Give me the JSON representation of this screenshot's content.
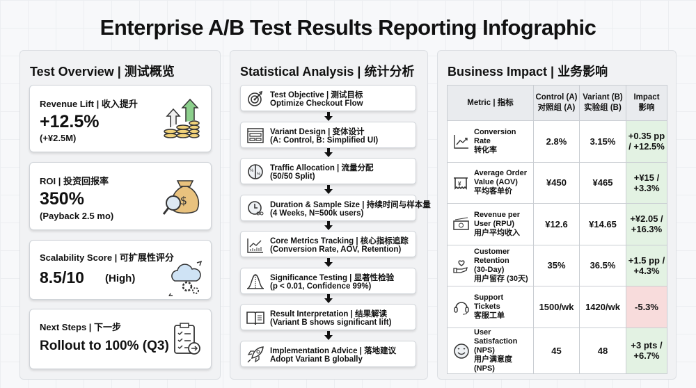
{
  "title": "Enterprise A/B Test Results Reporting Infographic",
  "overview": {
    "title": "Test Overview | 测试概览",
    "cards": [
      {
        "label": "Revenue Lift | 收入提升",
        "value": "+12.5%",
        "sub": "(+¥2.5M)",
        "icon": "coins-growth-icon"
      },
      {
        "label": "ROI | 投资回报率",
        "value": "350%",
        "sub": "(Payback 2.5 mo)",
        "icon": "money-bag-magnifier-icon"
      },
      {
        "label": "Scalability Score | 可扩展性评分",
        "value": "8.5/10",
        "sub": "(High)",
        "icon": "cloud-gears-icon"
      },
      {
        "label": "Next Steps | 下一步",
        "value": "Rollout to 100% (Q3)",
        "icon": "checklist-icon"
      }
    ]
  },
  "analysis": {
    "title": "Statistical Analysis | 统计分析",
    "steps": [
      {
        "title": "Test Objective | 测试目标",
        "detail": "Optimize Checkout Flow",
        "icon": "target-icon"
      },
      {
        "title": "Variant Design | 变体设计",
        "detail": "(A: Control, B: Simplified UI)",
        "icon": "layout-icon"
      },
      {
        "title": "Traffic Allocation | 流量分配",
        "detail": "(50/50 Split)",
        "icon": "pie-split-icon"
      },
      {
        "title": "Duration & Sample Size | 持续时间与样本量",
        "detail": "(4 Weeks, N=500k users)",
        "icon": "clock-users-icon"
      },
      {
        "title": "Core Metrics Tracking | 核心指标追踪",
        "detail": "(Conversion Rate, AOV, Retention)",
        "icon": "chart-icon"
      },
      {
        "title": "Significance Testing | 显著性检验",
        "detail": "(p < 0.01, Confidence 99%)",
        "icon": "bell-curve-icon"
      },
      {
        "title": "Result Interpretation | 结果解读",
        "detail": "(Variant B shows significant lift)",
        "icon": "book-icon"
      },
      {
        "title": "Implementation Advice | 落地建议",
        "detail": "Adopt Variant B globally",
        "icon": "rocket-icon"
      }
    ]
  },
  "impact": {
    "title": "Business Impact | 业务影响",
    "headers": [
      "Metric | 指标",
      "Control (A)\n对照组 (A)",
      "Variant (B)\n实验组 (B)",
      "Impact\n影响"
    ],
    "rows": [
      {
        "metric": "Conversion Rate\n转化率",
        "a": "2.8%",
        "b": "3.15%",
        "impact": "+0.35 pp\n/ +12.5%",
        "positive": true,
        "icon": "trend-up-icon"
      },
      {
        "metric": "Average Order\nValue (AOV)\n平均客单价",
        "a": "¥450",
        "b": "¥465",
        "impact": "+¥15 /\n+3.3%",
        "positive": true,
        "icon": "receipt-icon"
      },
      {
        "metric": "Revenue per\nUser (RPU)\n用户平均收入",
        "a": "¥12.6",
        "b": "¥14.65",
        "impact": "+¥2.05 /\n+16.3%",
        "positive": true,
        "icon": "cash-icon"
      },
      {
        "metric": "Customer\nRetention\n(30-Day)\n用户留存 (30天)",
        "a": "35%",
        "b": "36.5%",
        "impact": "+1.5 pp /\n+4.3%",
        "positive": true,
        "icon": "heart-hand-icon"
      },
      {
        "metric": "Support\nTickets\n客服工单",
        "a": "1500/wk",
        "b": "1420/wk",
        "impact": "-5.3%",
        "positive": false,
        "icon": "headset-icon"
      },
      {
        "metric": "User Satisfaction\n(NPS)\n用户满意度 (NPS)",
        "a": "45",
        "b": "48",
        "impact": "+3 pts /\n+6.7%",
        "positive": true,
        "icon": "smiley-icon"
      }
    ]
  },
  "colors": {
    "positive": "#e3f2e3",
    "negative": "#f8dcdc",
    "header": "#e9ebee"
  }
}
